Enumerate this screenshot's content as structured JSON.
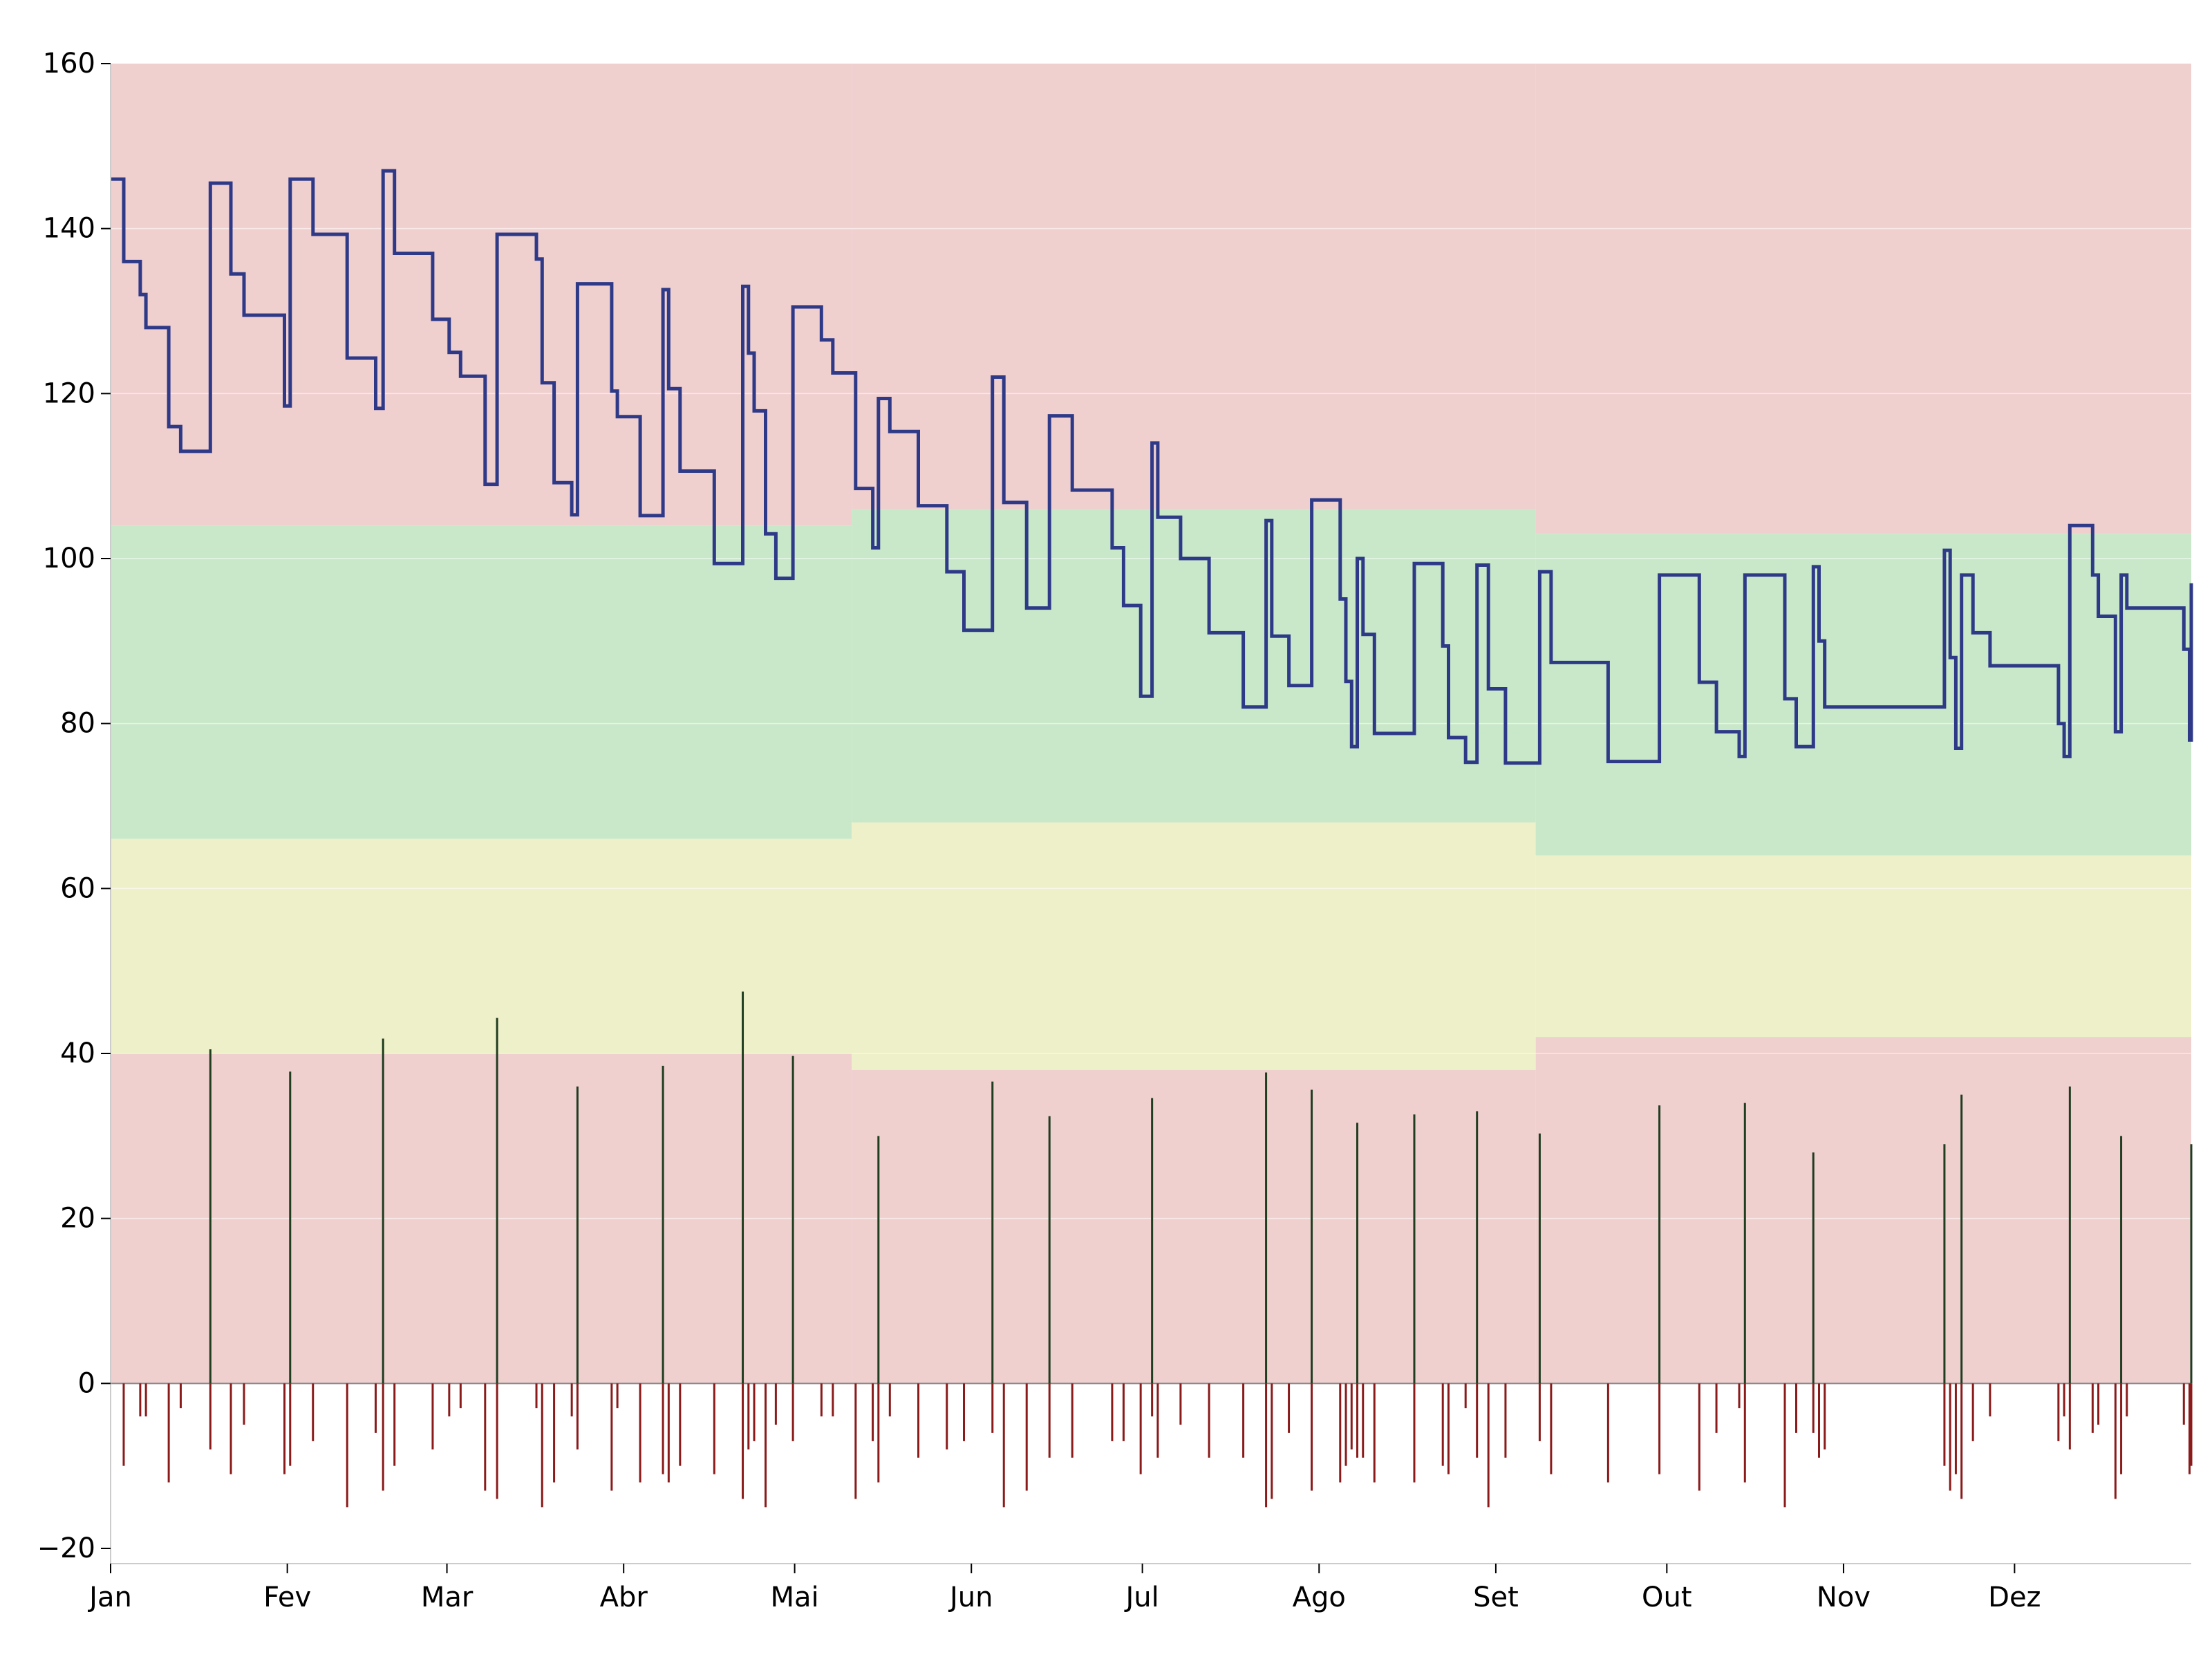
{
  "chart_data": {
    "type": "line",
    "title": "",
    "xlabel": "",
    "ylabel": "",
    "xlim": [
      0,
      365
    ],
    "ylim": [
      -20,
      160
    ],
    "grid": true,
    "legend": "none",
    "x_ticks": [
      {
        "label": "Jan",
        "day": 0
      },
      {
        "label": "Fev",
        "day": 31
      },
      {
        "label": "Mar",
        "day": 59
      },
      {
        "label": "Abr",
        "day": 90
      },
      {
        "label": "Mai",
        "day": 120
      },
      {
        "label": "Jun",
        "day": 151
      },
      {
        "label": "Jul",
        "day": 181
      },
      {
        "label": "Ago",
        "day": 212
      },
      {
        "label": "Set",
        "day": 243
      },
      {
        "label": "Out",
        "day": 273
      },
      {
        "label": "Nov",
        "day": 304
      },
      {
        "label": "Dez",
        "day": 334
      }
    ],
    "y_ticks": [
      160,
      140,
      120,
      100,
      80,
      60,
      40,
      20,
      0,
      -20
    ],
    "colors": {
      "line": "#2e3a87",
      "band_red": "#f0cfcf",
      "band_green": "#c9e8c9",
      "band_yellow": "#eef0c9",
      "bar_positive": "#1f3d1f",
      "bar_negative": "#8b1a1a",
      "grid": "#ffffff",
      "zero_line": "#8a8a8a"
    },
    "bands": [
      {
        "start": 0,
        "end": 130,
        "red_low": 40,
        "yellow_top": 66,
        "green_top": 104
      },
      {
        "start": 130,
        "end": 250,
        "red_low": 38,
        "yellow_top": 68,
        "green_top": 106
      },
      {
        "start": 250,
        "end": 365,
        "red_low": 42,
        "yellow_top": 64,
        "green_top": 103
      }
    ],
    "series": [
      {
        "type": "step",
        "points": [
          [
            0,
            146
          ],
          [
            2.3,
            136
          ],
          [
            5.2,
            132
          ],
          [
            6.2,
            128
          ],
          [
            10.2,
            116
          ],
          [
            12.3,
            113
          ],
          [
            17.5,
            145.5
          ],
          [
            21.1,
            134.5
          ],
          [
            23.4,
            129.5
          ],
          [
            30.5,
            118.5
          ],
          [
            31.5,
            146
          ],
          [
            35.5,
            139.3
          ],
          [
            41.5,
            124.3
          ],
          [
            46.5,
            118.2
          ],
          [
            47.8,
            147
          ],
          [
            49.8,
            137
          ],
          [
            56.5,
            129
          ],
          [
            59.4,
            125
          ],
          [
            61.4,
            122.1
          ],
          [
            65.7,
            109
          ],
          [
            67.8,
            139.3
          ],
          [
            74.7,
            136.3
          ],
          [
            75.7,
            121.3
          ],
          [
            77.8,
            109.2
          ],
          [
            80.9,
            105.3
          ],
          [
            81.9,
            133.3
          ],
          [
            87.9,
            120.3
          ],
          [
            88.9,
            117.2
          ],
          [
            92.9,
            105.2
          ],
          [
            96.9,
            132.6
          ],
          [
            97.9,
            120.6
          ],
          [
            99.9,
            110.6
          ],
          [
            105.9,
            99.4
          ],
          [
            110.9,
            133
          ],
          [
            111.9,
            124.9
          ],
          [
            112.9,
            117.9
          ],
          [
            114.9,
            103
          ],
          [
            116.7,
            97.6
          ],
          [
            119.7,
            130.5
          ],
          [
            124.7,
            126.5
          ],
          [
            126.7,
            122.5
          ],
          [
            130.7,
            108.5
          ],
          [
            133.7,
            101.3
          ],
          [
            134.7,
            119.4
          ],
          [
            136.7,
            115.4
          ],
          [
            141.7,
            106.4
          ],
          [
            146.7,
            98.4
          ],
          [
            149.7,
            91.3
          ],
          [
            154.7,
            122
          ],
          [
            156.7,
            106.8
          ],
          [
            160.7,
            94
          ],
          [
            164.7,
            117.3
          ],
          [
            168.7,
            108.3
          ],
          [
            175.7,
            101.3
          ],
          [
            177.7,
            94.3
          ],
          [
            180.7,
            83.3
          ],
          [
            182.7,
            114
          ],
          [
            183.7,
            105
          ],
          [
            187.7,
            100
          ],
          [
            192.7,
            91
          ],
          [
            198.7,
            82
          ],
          [
            202.7,
            104.6
          ],
          [
            203.7,
            90.6
          ],
          [
            206.7,
            84.6
          ],
          [
            210.7,
            107.1
          ],
          [
            215.7,
            95.1
          ],
          [
            216.7,
            85.1
          ],
          [
            217.7,
            77.2
          ],
          [
            218.7,
            100
          ],
          [
            219.7,
            90.8
          ],
          [
            221.7,
            78.8
          ],
          [
            228.7,
            99.4
          ],
          [
            233.7,
            89.4
          ],
          [
            234.7,
            78.3
          ],
          [
            237.7,
            75.3
          ],
          [
            239.7,
            99.2
          ],
          [
            241.7,
            84.2
          ],
          [
            244.7,
            75.2
          ],
          [
            250.7,
            98.4
          ],
          [
            252.7,
            87.4
          ],
          [
            262.7,
            75.4
          ],
          [
            271.7,
            98
          ],
          [
            278.7,
            85
          ],
          [
            281.7,
            79
          ],
          [
            285.7,
            76
          ],
          [
            286.7,
            98
          ],
          [
            293.7,
            83
          ],
          [
            295.7,
            77.2
          ],
          [
            298.7,
            99
          ],
          [
            299.7,
            90
          ],
          [
            300.7,
            82
          ],
          [
            321.7,
            101
          ],
          [
            322.7,
            88
          ],
          [
            323.7,
            77
          ],
          [
            324.7,
            98
          ],
          [
            326.7,
            91
          ],
          [
            329.7,
            87
          ],
          [
            341.7,
            80
          ],
          [
            342.7,
            76
          ],
          [
            343.7,
            104
          ],
          [
            347.7,
            98
          ],
          [
            348.7,
            93
          ],
          [
            351.7,
            79
          ],
          [
            352.7,
            98
          ],
          [
            353.7,
            94
          ],
          [
            363.7,
            89
          ],
          [
            364.7,
            78
          ],
          [
            365.7,
            97
          ],
          [
            366,
            97
          ]
        ]
      }
    ],
    "bars": [
      [
        2.3,
        -10
      ],
      [
        5.2,
        -4
      ],
      [
        6.2,
        -4
      ],
      [
        10.2,
        -12
      ],
      [
        12.3,
        -3
      ],
      [
        17.5,
        40.5
      ],
      [
        17.5,
        -8
      ],
      [
        21.1,
        -11
      ],
      [
        23.4,
        -5
      ],
      [
        30.5,
        -11
      ],
      [
        31.5,
        37.8
      ],
      [
        31.5,
        -10
      ],
      [
        35.5,
        -7
      ],
      [
        41.5,
        -15
      ],
      [
        46.5,
        -6
      ],
      [
        47.8,
        41.8
      ],
      [
        47.8,
        -13
      ],
      [
        49.8,
        -10
      ],
      [
        56.5,
        -8
      ],
      [
        59.4,
        -4
      ],
      [
        61.4,
        -3
      ],
      [
        65.7,
        -13
      ],
      [
        67.8,
        44.3
      ],
      [
        67.8,
        -14
      ],
      [
        74.7,
        -3
      ],
      [
        75.7,
        -15
      ],
      [
        77.8,
        -12
      ],
      [
        80.9,
        -4
      ],
      [
        81.9,
        36
      ],
      [
        81.9,
        -8
      ],
      [
        87.9,
        -13
      ],
      [
        88.9,
        -3
      ],
      [
        92.9,
        -12
      ],
      [
        96.9,
        38.5
      ],
      [
        96.9,
        -11
      ],
      [
        97.9,
        -12
      ],
      [
        99.9,
        -10
      ],
      [
        105.9,
        -11
      ],
      [
        110.9,
        47.5
      ],
      [
        110.9,
        -14
      ],
      [
        111.9,
        -8
      ],
      [
        112.9,
        -7
      ],
      [
        114.9,
        -15
      ],
      [
        116.7,
        -5
      ],
      [
        119.7,
        39.7
      ],
      [
        119.7,
        -7
      ],
      [
        124.7,
        -4
      ],
      [
        126.7,
        -4
      ],
      [
        130.7,
        -14
      ],
      [
        133.7,
        -7
      ],
      [
        134.7,
        30
      ],
      [
        134.7,
        -12
      ],
      [
        136.7,
        -4
      ],
      [
        141.7,
        -9
      ],
      [
        146.7,
        -8
      ],
      [
        149.7,
        -7
      ],
      [
        154.7,
        36.6
      ],
      [
        154.7,
        -6
      ],
      [
        156.7,
        -15
      ],
      [
        160.7,
        -13
      ],
      [
        164.7,
        32.4
      ],
      [
        164.7,
        -9
      ],
      [
        168.7,
        -9
      ],
      [
        175.7,
        -7
      ],
      [
        177.7,
        -7
      ],
      [
        180.7,
        -11
      ],
      [
        182.7,
        34.6
      ],
      [
        182.7,
        -4
      ],
      [
        183.7,
        -9
      ],
      [
        187.7,
        -5
      ],
      [
        192.7,
        -9
      ],
      [
        198.7,
        -9
      ],
      [
        202.7,
        37.7
      ],
      [
        202.7,
        -15
      ],
      [
        203.7,
        -14
      ],
      [
        206.7,
        -6
      ],
      [
        210.7,
        35.6
      ],
      [
        210.7,
        -13
      ],
      [
        215.7,
        -12
      ],
      [
        216.7,
        -10
      ],
      [
        217.7,
        -8
      ],
      [
        218.7,
        31.6
      ],
      [
        218.7,
        -9
      ],
      [
        219.7,
        -9
      ],
      [
        221.7,
        -12
      ],
      [
        228.7,
        32.6
      ],
      [
        228.7,
        -12
      ],
      [
        233.7,
        -10
      ],
      [
        234.7,
        -11
      ],
      [
        237.7,
        -3
      ],
      [
        239.7,
        33
      ],
      [
        239.7,
        -9
      ],
      [
        241.7,
        -15
      ],
      [
        244.7,
        -9
      ],
      [
        250.7,
        30.3
      ],
      [
        250.7,
        -7
      ],
      [
        252.7,
        -11
      ],
      [
        262.7,
        -12
      ],
      [
        271.7,
        33.7
      ],
      [
        271.7,
        -11
      ],
      [
        278.7,
        -13
      ],
      [
        281.7,
        -6
      ],
      [
        285.7,
        -3
      ],
      [
        286.7,
        34
      ],
      [
        286.7,
        -12
      ],
      [
        293.7,
        -15
      ],
      [
        295.7,
        -6
      ],
      [
        298.7,
        28
      ],
      [
        298.7,
        -6
      ],
      [
        299.7,
        -9
      ],
      [
        300.7,
        -8
      ],
      [
        321.7,
        29
      ],
      [
        321.7,
        -10
      ],
      [
        322.7,
        -13
      ],
      [
        323.7,
        -11
      ],
      [
        324.7,
        35
      ],
      [
        324.7,
        -14
      ],
      [
        326.7,
        -7
      ],
      [
        329.7,
        -4
      ],
      [
        341.7,
        -7
      ],
      [
        342.7,
        -4
      ],
      [
        343.7,
        36
      ],
      [
        343.7,
        -8
      ],
      [
        347.7,
        -6
      ],
      [
        348.7,
        -5
      ],
      [
        351.7,
        -14
      ],
      [
        352.7,
        30
      ],
      [
        352.7,
        -11
      ],
      [
        353.7,
        -4
      ],
      [
        363.7,
        -5
      ],
      [
        364.7,
        -11
      ],
      [
        365.7,
        29
      ],
      [
        365.7,
        -10
      ]
    ]
  }
}
